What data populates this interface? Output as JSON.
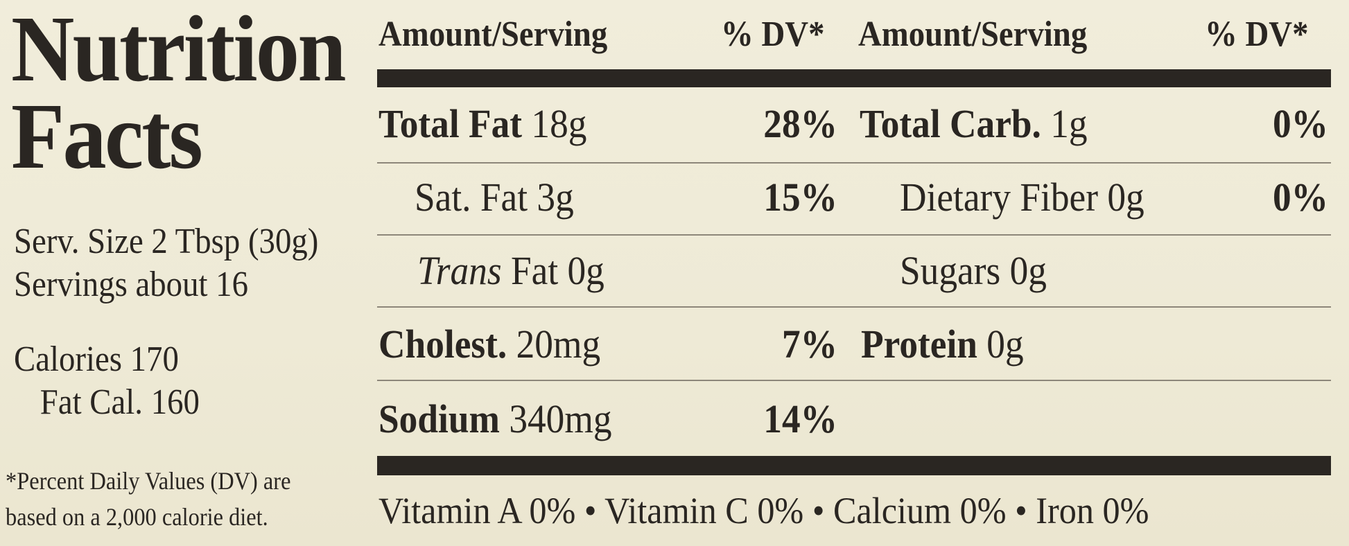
{
  "title": [
    "Nutrition",
    "Facts"
  ],
  "serving_size": "Serv. Size 2 Tbsp (30g)",
  "servings": "Servings about 16",
  "calories": "Calories 170",
  "fat_calories": "Fat Cal. 160",
  "footnote": [
    "*Percent Daily Values (DV) are",
    "based on a 2,000 calorie diet."
  ],
  "header": {
    "amount_left": "Amount/Serving",
    "dv_left": "% DV*",
    "amount_right": "Amount/Serving",
    "dv_right": "% DV*"
  },
  "left_rows": [
    {
      "name": "Total Fat",
      "amount": "18g",
      "dv": "28%"
    },
    {
      "name": "Sat. Fat",
      "amount": "3g",
      "dv": "15%"
    },
    {
      "name": "Trans",
      "amount": "Fat 0g",
      "dv": ""
    },
    {
      "name": "Cholest.",
      "amount": "20mg",
      "dv": "7%"
    },
    {
      "name": "Sodium",
      "amount": "340mg",
      "dv": "14%"
    }
  ],
  "right_rows": [
    {
      "name": "Total Carb.",
      "amount": "1g",
      "dv": "0%"
    },
    {
      "name": "Dietary Fiber",
      "amount": "0g",
      "dv": "0%"
    },
    {
      "name": "Sugars",
      "amount": "0g",
      "dv": ""
    },
    {
      "name": "Protein",
      "amount": "0g",
      "dv": ""
    }
  ],
  "vitamins": "Vitamin A 0% • Vitamin C 0% • Calcium 0% • Iron 0%"
}
